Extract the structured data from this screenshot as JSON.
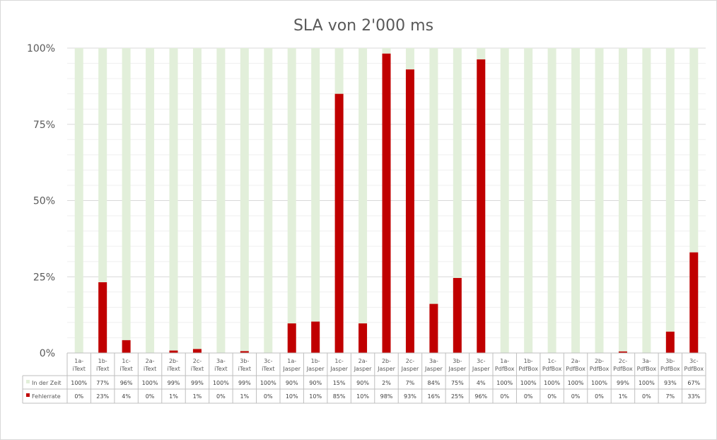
{
  "chart_data": {
    "type": "bar",
    "stacked": true,
    "title": "SLA von 2'000 ms",
    "yticks": [
      "0%",
      "25%",
      "50%",
      "75%",
      "100%"
    ],
    "ylim": [
      0,
      100
    ],
    "grid": true,
    "legend_placement": "data-table",
    "categories": [
      [
        "1a-",
        "iText"
      ],
      [
        "1b-",
        "iText"
      ],
      [
        "1c-",
        "iText"
      ],
      [
        "2a-",
        "iText"
      ],
      [
        "2b-",
        "iText"
      ],
      [
        "2c-",
        "iText"
      ],
      [
        "3a-",
        "iText"
      ],
      [
        "3b-",
        "iText"
      ],
      [
        "3c-",
        "iText"
      ],
      [
        "1a-",
        "Jasper"
      ],
      [
        "1b-",
        "Jasper"
      ],
      [
        "1c-",
        "Jasper"
      ],
      [
        "2a-",
        "Jasper"
      ],
      [
        "2b-",
        "Jasper"
      ],
      [
        "2c-",
        "Jasper"
      ],
      [
        "3a-",
        "Jasper"
      ],
      [
        "3b-",
        "Jasper"
      ],
      [
        "3c-",
        "Jasper"
      ],
      [
        "1a-",
        "PdfBox"
      ],
      [
        "1b-",
        "PdfBox"
      ],
      [
        "1c-",
        "PdfBox"
      ],
      [
        "2a-",
        "PdfBox"
      ],
      [
        "2b-",
        "PdfBox"
      ],
      [
        "2c-",
        "PdfBox"
      ],
      [
        "3a-",
        "PdfBox"
      ],
      [
        "3b-",
        "PdfBox"
      ],
      [
        "3c-",
        "PdfBox"
      ]
    ],
    "series": [
      {
        "name": "In der Zeit",
        "color": "#e2efda",
        "values": [
          100,
          77,
          96,
          100,
          99,
          99,
          100,
          99,
          100,
          90,
          90,
          15,
          90,
          2,
          7,
          84,
          75,
          4,
          100,
          100,
          100,
          100,
          100,
          99,
          100,
          93,
          67
        ],
        "labels": [
          "100%",
          "77%",
          "96%",
          "100%",
          "99%",
          "99%",
          "100%",
          "99%",
          "100%",
          "90%",
          "90%",
          "15%",
          "90%",
          "2%",
          "7%",
          "84%",
          "75%",
          "4%",
          "100%",
          "100%",
          "100%",
          "100%",
          "100%",
          "99%",
          "100%",
          "93%",
          "67%"
        ]
      },
      {
        "name": "Fehlerrate",
        "color": "#c00000",
        "values": [
          0,
          23.2,
          4.2,
          0,
          0.8,
          1.3,
          0,
          0.6,
          0,
          9.7,
          10.3,
          85,
          9.7,
          98.2,
          93,
          16.1,
          24.6,
          96.3,
          0,
          0,
          0,
          0,
          0,
          0.5,
          0,
          7,
          33
        ],
        "labels": [
          "0%",
          "23%",
          "4%",
          "0%",
          "1%",
          "1%",
          "0%",
          "1%",
          "0%",
          "10%",
          "10%",
          "85%",
          "10%",
          "98%",
          "93%",
          "16%",
          "25%",
          "96%",
          "0%",
          "0%",
          "0%",
          "0%",
          "0%",
          "1%",
          "0%",
          "7%",
          "33%"
        ]
      }
    ]
  }
}
